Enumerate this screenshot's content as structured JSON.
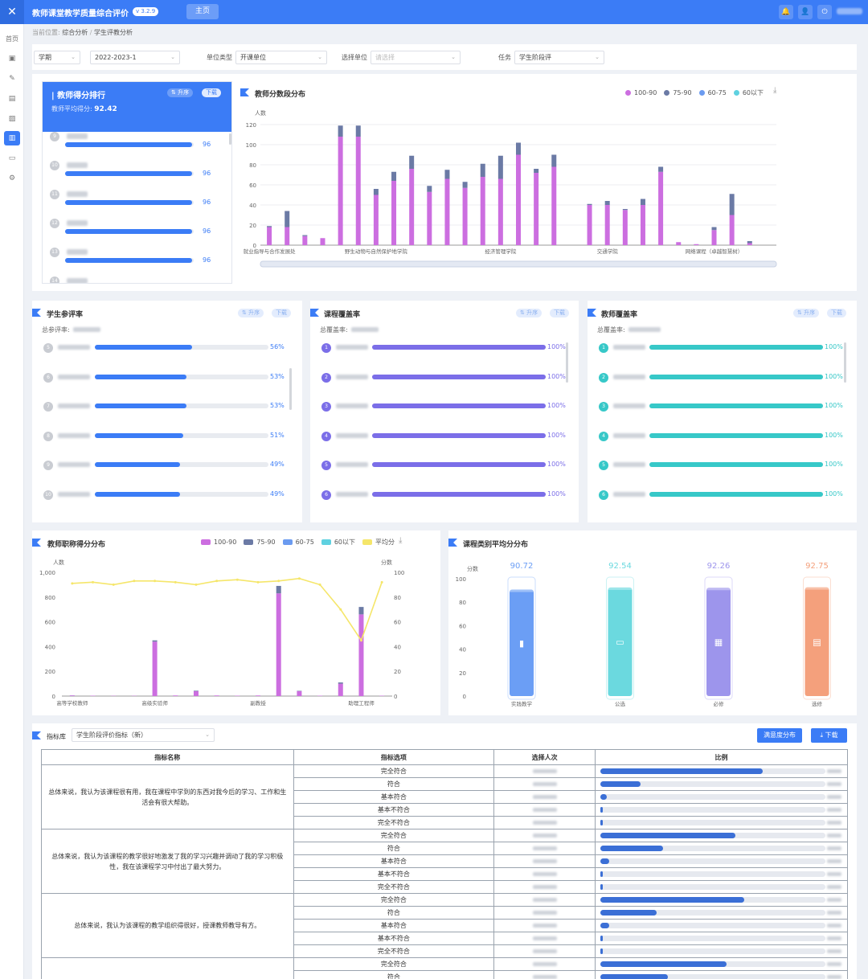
{
  "app": {
    "title": "教师课堂教学质量综合评价",
    "version": "v 3.2.9",
    "home_tab": "主页",
    "close_icon": "close-icon"
  },
  "sidebar": {
    "home_label": "首页"
  },
  "breadcrumb": {
    "prefix": "当前位置:",
    "items": [
      "综合分析",
      "学生评教分析"
    ],
    "sep": "/"
  },
  "filters": {
    "term_label": "学期",
    "term_value": "2022-2023-1",
    "unit_type_label": "单位类型",
    "unit_type_value": "开课单位",
    "unit_label": "选择单位",
    "unit_placeholder": "请选择",
    "task_label": "任务",
    "task_value": "学生阶段评"
  },
  "ranking": {
    "title": "教师得分排行",
    "asc": "升序",
    "download": "下载",
    "avg_label": "教师平均得分:",
    "avg_value": "92.42",
    "rows": [
      {
        "rank": "9",
        "score": "96"
      },
      {
        "rank": "10",
        "score": "96"
      },
      {
        "rank": "11",
        "score": "96"
      },
      {
        "rank": "12",
        "score": "96"
      },
      {
        "rank": "13",
        "score": "96"
      },
      {
        "rank": "14",
        "score": ""
      }
    ]
  },
  "dist": {
    "title": "教师分数段分布",
    "ylabel": "人数",
    "legend": [
      {
        "name": "100-90",
        "color": "#cc6ee0"
      },
      {
        "name": "75-90",
        "color": "#6b7aa5"
      },
      {
        "name": "60-75",
        "color": "#6b9bf0"
      },
      {
        "name": "60以下",
        "color": "#5fd1e0"
      }
    ]
  },
  "participation": {
    "title": "学生参评率",
    "asc": "升序",
    "download": "下载",
    "total_label": "总参评率:",
    "rows": [
      {
        "rank": "5",
        "value": "56%",
        "frac": 0.56
      },
      {
        "rank": "6",
        "value": "53%",
        "frac": 0.53
      },
      {
        "rank": "7",
        "value": "53%",
        "frac": 0.53
      },
      {
        "rank": "8",
        "value": "51%",
        "frac": 0.51
      },
      {
        "rank": "9",
        "value": "49%",
        "frac": 0.49
      },
      {
        "rank": "10",
        "value": "49%",
        "frac": 0.49
      }
    ]
  },
  "course_cov": {
    "title": "课程覆盖率",
    "asc": "升序",
    "download": "下载",
    "total_label": "总覆盖率:",
    "rows": [
      {
        "rank": "1",
        "value": "100%"
      },
      {
        "rank": "2",
        "value": "100%"
      },
      {
        "rank": "3",
        "value": "100%"
      },
      {
        "rank": "4",
        "value": "100%"
      },
      {
        "rank": "5",
        "value": "100%"
      },
      {
        "rank": "6",
        "value": "100%"
      }
    ]
  },
  "teacher_cov": {
    "title": "教师覆盖率",
    "asc": "升序",
    "download": "下载",
    "total_label": "总覆盖率:",
    "rows": [
      {
        "rank": "1",
        "value": "100%"
      },
      {
        "rank": "2",
        "value": "100%"
      },
      {
        "rank": "3",
        "value": "100%"
      },
      {
        "rank": "4",
        "value": "100%"
      },
      {
        "rank": "5",
        "value": "100%"
      },
      {
        "rank": "6",
        "value": "100%"
      }
    ]
  },
  "title_chart": {
    "title": "教师职称得分分布",
    "ylabel": "人数",
    "y2label": "分数",
    "legend": [
      {
        "name": "100-90",
        "color": "#cc6ee0"
      },
      {
        "name": "75-90",
        "color": "#6b7aa5"
      },
      {
        "name": "60-75",
        "color": "#6b9bf0"
      },
      {
        "name": "60以下",
        "color": "#5fd1e0"
      },
      {
        "name": "平均分",
        "color": "#f5e66a"
      }
    ]
  },
  "cat_chart": {
    "title": "课程类别平均分分布",
    "ylabel": "分数"
  },
  "indicator": {
    "label": "指标库",
    "select_value": "学生阶段评价指标（新）",
    "btn_satisfaction": "满意度分布",
    "btn_download": "下载",
    "headers": [
      "指标名称",
      "指标选项",
      "选择人次",
      "比例"
    ],
    "groups": [
      {
        "name": "总体来说，我认为该课程很有用，我在课程中学到的东西对我今后的学习、工作和生活会有很大帮助。",
        "options": [
          {
            "opt": "完全符合",
            "frac": 0.72
          },
          {
            "opt": "符合",
            "frac": 0.18
          },
          {
            "opt": "基本符合",
            "frac": 0.03
          },
          {
            "opt": "基本不符合",
            "frac": 0.004
          },
          {
            "opt": "完全不符合",
            "frac": 0.004
          }
        ]
      },
      {
        "name": "总体来说，我认为该课程的教学很好地激发了我的学习兴趣并调动了我的学习积极性，我在该课程学习中付出了最大努力。",
        "options": [
          {
            "opt": "完全符合",
            "frac": 0.6
          },
          {
            "opt": "符合",
            "frac": 0.28
          },
          {
            "opt": "基本符合",
            "frac": 0.04
          },
          {
            "opt": "基本不符合",
            "frac": 0.004
          },
          {
            "opt": "完全不符合",
            "frac": 0.004
          }
        ]
      },
      {
        "name": "总体来说，我认为该课程的教学组织得很好，授课教师教导有方。",
        "options": [
          {
            "opt": "完全符合",
            "frac": 0.64
          },
          {
            "opt": "符合",
            "frac": 0.25
          },
          {
            "opt": "基本符合",
            "frac": 0.04
          },
          {
            "opt": "基本不符合",
            "frac": 0.004
          },
          {
            "opt": "完全不符合",
            "frac": 0.004
          }
        ]
      },
      {
        "name": "",
        "options": [
          {
            "opt": "完全符合",
            "frac": 0.56
          },
          {
            "opt": "符合",
            "frac": 0.3
          }
        ]
      }
    ]
  },
  "chart_data": [
    {
      "type": "bar",
      "stacked": true,
      "title": "教师分数段分布",
      "ylabel": "人数",
      "ylim": [
        0,
        120
      ],
      "yticks": [
        "0",
        "20",
        "40",
        "60",
        "80",
        "100",
        "120"
      ],
      "xticklabels": [
        "就业指导与合作发展处",
        "野生动物与自然保护地学院",
        "经济管理学院",
        "交通学院",
        "网络课程（卓越智慧树）"
      ],
      "categories_count": 29,
      "series": [
        {
          "name": "100-90",
          "values": [
            18,
            18,
            9,
            7,
            108,
            108,
            50,
            64,
            76,
            53,
            66,
            57,
            68,
            66,
            90,
            72,
            78,
            0,
            40,
            40,
            35,
            40,
            73,
            3,
            1,
            15,
            30,
            2,
            0
          ]
        },
        {
          "name": "75-90",
          "values": [
            1,
            16,
            1,
            0,
            11,
            11,
            6,
            9,
            13,
            6,
            9,
            6,
            13,
            23,
            12,
            4,
            12,
            0,
            1,
            4,
            1,
            6,
            5,
            0,
            0,
            3,
            21,
            2,
            0
          ]
        },
        {
          "name": "60-75",
          "values": [
            0,
            0,
            0,
            0,
            0,
            0,
            0,
            0,
            0,
            0,
            0,
            0,
            0,
            0,
            0,
            0,
            0,
            0,
            0,
            0,
            0,
            0,
            0,
            0,
            0,
            0,
            0,
            0,
            0
          ]
        },
        {
          "name": "60以下",
          "values": [
            0,
            0,
            0,
            0,
            0,
            0,
            0,
            0,
            0,
            0,
            0,
            0,
            0,
            0,
            0,
            0,
            0,
            0,
            0,
            0,
            0,
            0,
            0,
            0,
            0,
            0,
            0,
            0,
            0
          ]
        }
      ]
    },
    {
      "type": "bar",
      "stacked": true,
      "title": "教师职称得分分布",
      "ylabel": "人数",
      "y2label": "分数",
      "ylim": [
        0,
        1000
      ],
      "y2lim": [
        0,
        100
      ],
      "yticks": [
        "0",
        "200",
        "400",
        "600",
        "800",
        "1,000"
      ],
      "y2ticks": [
        "0",
        "20",
        "40",
        "60",
        "80",
        "100"
      ],
      "xticklabels": [
        "高等学校教师",
        "高级实验师",
        "副教授",
        "助理工程师"
      ],
      "categories_count": 16,
      "series": [
        {
          "name": "100-90",
          "values": [
            5,
            3,
            2,
            2,
            440,
            5,
            40,
            5,
            3,
            5,
            830,
            40,
            3,
            100,
            660,
            3
          ]
        },
        {
          "name": "75-90",
          "values": [
            1,
            0,
            0,
            0,
            10,
            0,
            4,
            0,
            0,
            0,
            60,
            3,
            0,
            10,
            60,
            0
          ]
        },
        {
          "name": "平均分",
          "values": [
            91,
            92,
            90,
            93,
            93,
            92,
            90,
            93,
            94,
            92,
            93,
            95,
            90,
            70,
            45,
            92
          ]
        }
      ]
    },
    {
      "type": "bar",
      "title": "课程类别平均分分布",
      "ylabel": "分数",
      "ylim": [
        0,
        100
      ],
      "yticks": [
        "0",
        "20",
        "40",
        "60",
        "80",
        "100"
      ],
      "categories": [
        "实践教学",
        "公选",
        "必修",
        "选修"
      ],
      "values": [
        90.72,
        92.54,
        92.26,
        92.75
      ],
      "value_labels": [
        "90.72",
        "92.54",
        "92.26",
        "92.75"
      ],
      "colors": [
        "#6b9ef5",
        "#6bd9df",
        "#9d95ec",
        "#f4a07c"
      ],
      "icons": [
        "book-icon",
        "briefcase-icon",
        "grid-icon",
        "id-card-icon"
      ]
    }
  ]
}
